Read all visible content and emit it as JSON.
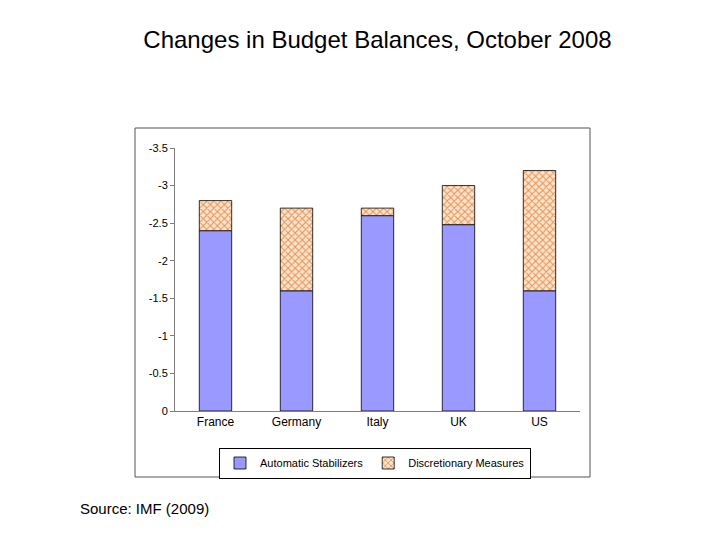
{
  "chart_data": {
    "type": "bar",
    "title": "Changes in Budget Balances, October 2008",
    "categories": [
      "France",
      "Germany",
      "Italy",
      "UK",
      "US"
    ],
    "series": [
      {
        "name": "Automatic Stabilizers",
        "color": "#9999ff",
        "values": [
          -2.4,
          -1.6,
          -2.6,
          -2.48,
          -1.6
        ]
      },
      {
        "name": "Discretionary Measures",
        "color": "#e8904a",
        "values": [
          -0.4,
          -1.1,
          -0.1,
          -0.52,
          -1.6
        ]
      }
    ],
    "stacked": true,
    "ylim": [
      0,
      -3.5
    ],
    "yticks": [
      -3.5,
      -3,
      -2.5,
      -2,
      -1.5,
      -1,
      -0.5,
      0
    ],
    "grid": false,
    "legend": "bottom",
    "annotations": [
      "Source: IMF (2009)"
    ]
  }
}
